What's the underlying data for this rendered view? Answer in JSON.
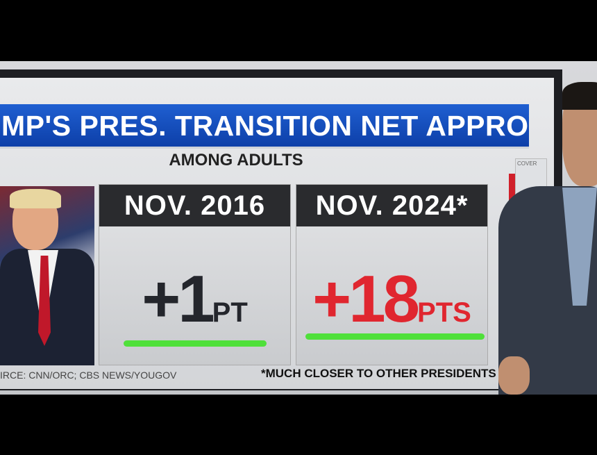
{
  "graphic": {
    "title": "MP'S PRES. TRANSITION NET APPROVAL",
    "subtitle": "AMONG ADULTS",
    "panels": [
      {
        "header": "NOV. 2016",
        "value": "+1",
        "unit": "PT",
        "color": "#24262c"
      },
      {
        "header": "NOV. 2024*",
        "value": "+18",
        "unit": "PTS",
        "color": "#e0262f"
      }
    ],
    "source": "IRCE: CNN/ORC; CBS NEWS/YOUGOV",
    "footnote": "*MUCH CLOSER TO OTHER PRESIDENTS",
    "side_label": "COVER",
    "accent_blue": "#1a55c8",
    "underline_color": "#4fe03a"
  }
}
